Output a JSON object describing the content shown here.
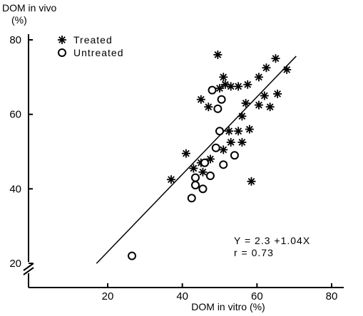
{
  "chart_data": {
    "type": "scatter",
    "title": "",
    "ylabel_line1": "DOM in vivo",
    "ylabel_line2": "(%)",
    "xlabel": "DOM in vitro (%)",
    "xlim": [
      10,
      85
    ],
    "ylim": [
      18,
      82
    ],
    "x_ticks": [
      20,
      40,
      60,
      80
    ],
    "y_ticks": [
      20,
      40,
      60,
      80
    ],
    "axis_breaks": true,
    "grid": false,
    "legend_position": "top-left",
    "series": [
      {
        "name": "Treated",
        "marker": "asterisk",
        "points": [
          {
            "x": 49.5,
            "y": 76
          },
          {
            "x": 65,
            "y": 75
          },
          {
            "x": 62.5,
            "y": 72.5
          },
          {
            "x": 68,
            "y": 72
          },
          {
            "x": 60.5,
            "y": 70
          },
          {
            "x": 51,
            "y": 70
          },
          {
            "x": 51.5,
            "y": 68
          },
          {
            "x": 53,
            "y": 67.5
          },
          {
            "x": 55,
            "y": 67.5
          },
          {
            "x": 57.5,
            "y": 68
          },
          {
            "x": 50,
            "y": 67
          },
          {
            "x": 62,
            "y": 65
          },
          {
            "x": 65.5,
            "y": 65.5
          },
          {
            "x": 45,
            "y": 64
          },
          {
            "x": 57,
            "y": 63
          },
          {
            "x": 60.5,
            "y": 62.5
          },
          {
            "x": 63.5,
            "y": 62
          },
          {
            "x": 47,
            "y": 62
          },
          {
            "x": 56,
            "y": 59.5
          },
          {
            "x": 52.5,
            "y": 55.5
          },
          {
            "x": 55,
            "y": 55.5
          },
          {
            "x": 58,
            "y": 56
          },
          {
            "x": 53,
            "y": 52.5
          },
          {
            "x": 56,
            "y": 52.5
          },
          {
            "x": 51,
            "y": 50.5
          },
          {
            "x": 41,
            "y": 49.5
          },
          {
            "x": 47.5,
            "y": 48
          },
          {
            "x": 45,
            "y": 47
          },
          {
            "x": 43,
            "y": 45.5
          },
          {
            "x": 45.5,
            "y": 44.5
          },
          {
            "x": 37,
            "y": 42.5
          },
          {
            "x": 58.5,
            "y": 42
          }
        ]
      },
      {
        "name": "Untreated",
        "marker": "circle",
        "points": [
          {
            "x": 48,
            "y": 66.5
          },
          {
            "x": 50.5,
            "y": 64
          },
          {
            "x": 49.5,
            "y": 61.5
          },
          {
            "x": 50,
            "y": 55.5
          },
          {
            "x": 49,
            "y": 51
          },
          {
            "x": 54,
            "y": 49
          },
          {
            "x": 46,
            "y": 47
          },
          {
            "x": 51,
            "y": 46.5
          },
          {
            "x": 47.5,
            "y": 43.5
          },
          {
            "x": 43.5,
            "y": 43
          },
          {
            "x": 43.5,
            "y": 41
          },
          {
            "x": 45.5,
            "y": 40
          },
          {
            "x": 42.5,
            "y": 37.5
          },
          {
            "x": 26.5,
            "y": 22
          }
        ]
      }
    ],
    "regression_line": {
      "intercept": 2.3,
      "slope": 1.04,
      "x_range": [
        17,
        70.5
      ]
    },
    "annotations": {
      "equation": "Y = 2.3 +1.04X",
      "r_value": "r = 0.73"
    }
  }
}
